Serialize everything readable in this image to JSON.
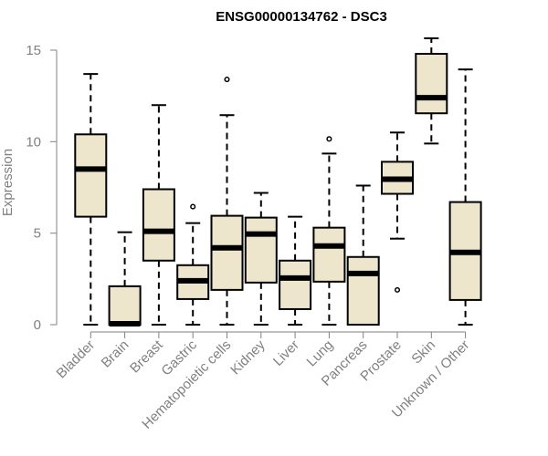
{
  "chart_data": {
    "type": "box",
    "title": "ENSG00000134762 - DSC3",
    "ylabel": "Expression",
    "xlabel": "",
    "ylim": [
      0,
      15.6
    ],
    "yticks": [
      0,
      5,
      10,
      15
    ],
    "box_fill": "#ede6cc",
    "box_stroke": "#000000",
    "axis_color": "#808080",
    "grid": false,
    "categories": [
      "Bladder",
      "Brain",
      "Breast",
      "Gastric",
      "Hematopoietic cells",
      "Kidney",
      "Liver",
      "Lung",
      "Pancreas",
      "Prostate",
      "Skin",
      "Unknown / Other"
    ],
    "boxes": [
      {
        "category": "Bladder",
        "min": 0,
        "q1": 5.9,
        "median": 8.5,
        "q3": 10.4,
        "max": 13.7,
        "outliers": []
      },
      {
        "category": "Brain",
        "min": 0,
        "q1": 0,
        "median": 0.05,
        "q3": 2.1,
        "max": 5.05,
        "outliers": []
      },
      {
        "category": "Breast",
        "min": 0,
        "q1": 3.5,
        "median": 5.1,
        "q3": 7.4,
        "max": 12.0,
        "outliers": []
      },
      {
        "category": "Gastric",
        "min": 0,
        "q1": 1.4,
        "median": 2.4,
        "q3": 3.25,
        "max": 5.55,
        "outliers": [
          6.45
        ]
      },
      {
        "category": "Hematopoietic cells",
        "min": 0,
        "q1": 1.9,
        "median": 4.2,
        "q3": 5.95,
        "max": 11.45,
        "outliers": [
          13.4
        ]
      },
      {
        "category": "Kidney",
        "min": 0,
        "q1": 2.3,
        "median": 4.95,
        "q3": 5.85,
        "max": 7.2,
        "outliers": []
      },
      {
        "category": "Liver",
        "min": 0,
        "q1": 0.85,
        "median": 2.55,
        "q3": 3.5,
        "max": 5.9,
        "outliers": []
      },
      {
        "category": "Lung",
        "min": 0,
        "q1": 2.35,
        "median": 4.3,
        "q3": 5.3,
        "max": 9.35,
        "outliers": [
          10.15
        ]
      },
      {
        "category": "Pancreas",
        "min": 0,
        "q1": 0,
        "median": 2.8,
        "q3": 3.7,
        "max": 7.6,
        "outliers": []
      },
      {
        "category": "Prostate",
        "min": 4.7,
        "q1": 7.15,
        "median": 7.95,
        "q3": 8.9,
        "max": 10.5,
        "outliers": [
          1.9
        ]
      },
      {
        "category": "Skin",
        "min": 9.9,
        "q1": 11.55,
        "median": 12.4,
        "q3": 14.8,
        "max": 15.65,
        "outliers": []
      },
      {
        "category": "Unknown / Other",
        "min": 0,
        "q1": 1.35,
        "median": 3.95,
        "q3": 6.7,
        "max": 13.95,
        "outliers": []
      }
    ]
  }
}
